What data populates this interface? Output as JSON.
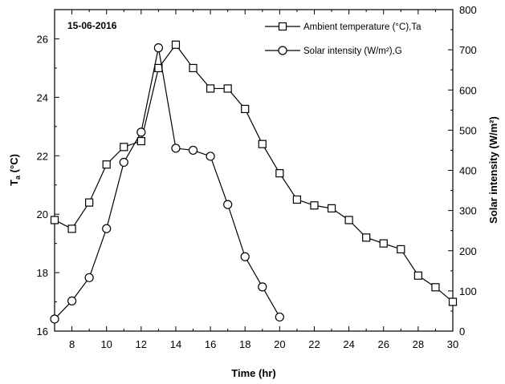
{
  "chart_data": {
    "type": "line",
    "annotation": "15-06-2016",
    "xlabel": "Time (hr)",
    "ylabel_left": "T",
    "ylabel_left_sub": "a",
    "ylabel_left_unit": " (°C)",
    "ylabel_right": "Solar intensity (W/m²)",
    "xlim": [
      7,
      30
    ],
    "ylim_left": [
      16,
      27
    ],
    "ylim_right": [
      0,
      800
    ],
    "xticks": [
      8,
      10,
      12,
      14,
      16,
      18,
      20,
      22,
      24,
      26,
      28,
      30
    ],
    "yticks_left": [
      16,
      18,
      20,
      22,
      24,
      26
    ],
    "yticks_right": [
      0,
      100,
      200,
      300,
      400,
      500,
      600,
      700,
      800
    ],
    "legend_position": "top-right",
    "grid": false,
    "series": [
      {
        "name": "Ambient temperature (°C),Ta",
        "axis": "left",
        "marker": "square",
        "x": [
          7,
          8,
          9,
          10,
          11,
          12,
          13,
          14,
          15,
          16,
          17,
          18,
          19,
          20,
          21,
          22,
          23,
          24,
          25,
          26,
          27,
          28,
          29,
          30
        ],
        "y": [
          19.8,
          19.5,
          20.4,
          21.7,
          22.3,
          22.5,
          25.0,
          25.8,
          25.0,
          24.3,
          24.3,
          23.6,
          22.4,
          21.4,
          20.5,
          20.3,
          20.2,
          19.8,
          19.2,
          19.0,
          18.8,
          17.9,
          17.5,
          17.0
        ]
      },
      {
        "name": "Solar intensity (W/m²),G",
        "axis": "right",
        "marker": "circle",
        "x": [
          7,
          8,
          9,
          10,
          11,
          12,
          13,
          14,
          15,
          16,
          17,
          18,
          19,
          20
        ],
        "y": [
          30,
          75,
          133,
          255,
          420,
          495,
          705,
          455,
          450,
          435,
          315,
          185,
          110,
          35
        ]
      }
    ]
  }
}
